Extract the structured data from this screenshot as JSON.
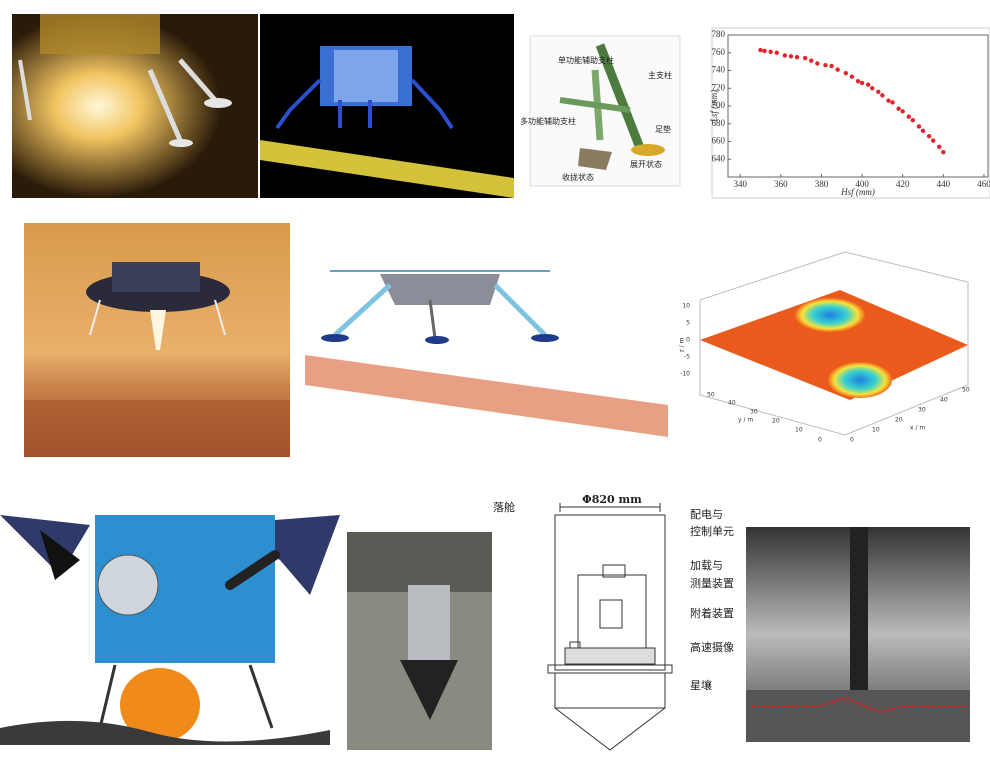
{
  "leg_diagram": {
    "labels": [
      "单功能辅助支柱",
      "主支柱",
      "多功能辅助支柱",
      "足垫",
      "收拢状态",
      "展开状态"
    ]
  },
  "scatter_plot": {
    "type": "scatter",
    "x_label": "Hsf (mm)",
    "y_label": "Lsf (mm)",
    "color": "#e0262b",
    "xlim": [
      334,
      462
    ],
    "ylim": [
      620,
      780
    ],
    "xticks": [
      340,
      360,
      380,
      400,
      420,
      440,
      460
    ],
    "yticks": [
      640,
      660,
      680,
      700,
      720,
      740,
      760,
      780
    ],
    "x": [
      350,
      352,
      355,
      358,
      362,
      365,
      368,
      372,
      375,
      378,
      382,
      385,
      388,
      392,
      395,
      398,
      400,
      403,
      405,
      408,
      410,
      413,
      415,
      418,
      420,
      423,
      425,
      428,
      430,
      433,
      435,
      438,
      440
    ],
    "y": [
      763,
      762,
      761,
      760,
      757,
      756,
      755,
      754,
      751,
      748,
      746,
      745,
      741,
      737,
      733,
      728,
      726,
      724,
      720,
      716,
      712,
      706,
      704,
      697,
      694,
      688,
      684,
      677,
      672,
      666,
      661,
      654,
      648
    ]
  },
  "surface_plot": {
    "z_label": "z / m",
    "y_label": "y / m",
    "x_label": "x / m",
    "z_ticks": [
      "10",
      "5",
      "0",
      "-5",
      "-10"
    ],
    "y_ticks": [
      "0",
      "10",
      "20",
      "30",
      "40",
      "50"
    ],
    "x_ticks": [
      "0",
      "10",
      "20",
      "30",
      "40",
      "50"
    ]
  },
  "drop_test": {
    "diameter": "Φ820 mm",
    "capsule": "落舱",
    "power_unit": [
      "配电与",
      "控制单元"
    ],
    "loading_unit": [
      "加载与",
      "测量装置"
    ],
    "attachment": "附着装置",
    "camera": "高速摄像",
    "regolith": "星壤"
  }
}
